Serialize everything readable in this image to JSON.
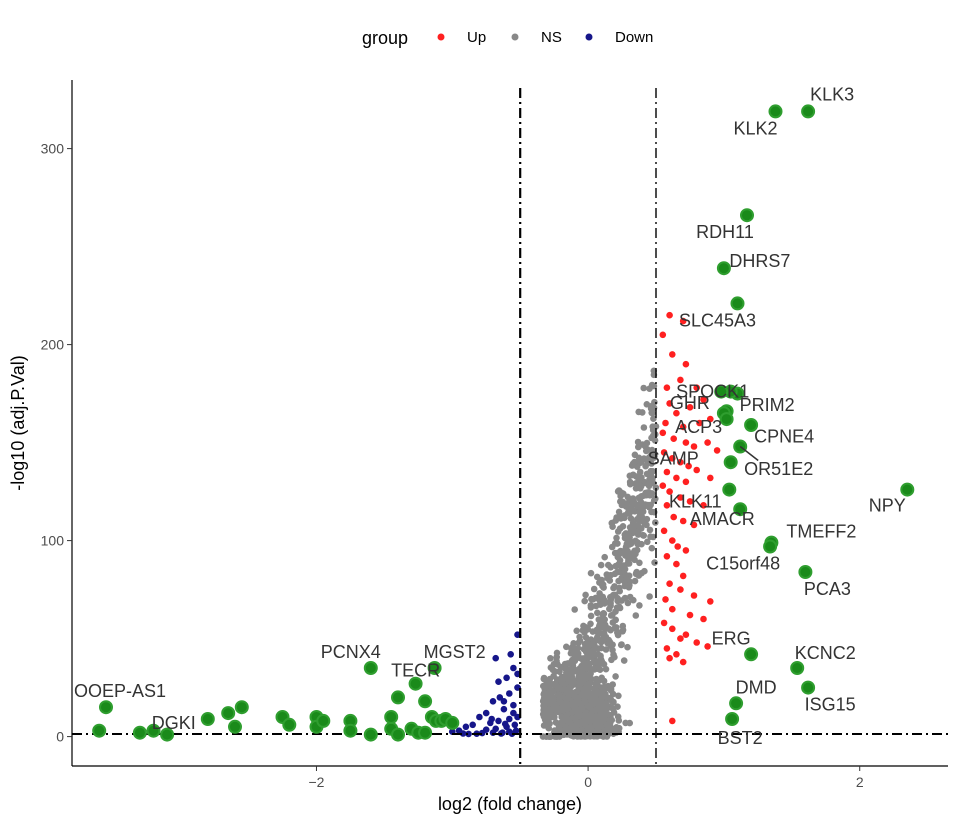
{
  "chart_data": {
    "type": "scatter",
    "xlabel": "log2 (fold change)",
    "ylabel": "-log10 (adj.P.Val)",
    "xlim": [
      -3.8,
      2.65
    ],
    "ylim": [
      -15,
      335
    ],
    "x_ticks": [
      -2,
      0,
      2
    ],
    "y_ticks": [
      0,
      100,
      200,
      300
    ],
    "x_tick_labels": [
      "−2",
      "0",
      "2"
    ],
    "y_tick_labels": [
      "0",
      "100",
      "200",
      "300"
    ],
    "grid": false,
    "thresholds": {
      "fc_left": -0.5,
      "fc_right": 0.5,
      "p_line": 1.3
    },
    "legend": {
      "title": "group",
      "position": "top",
      "entries": [
        {
          "label": "Up",
          "color": "#ff2020"
        },
        {
          "label": "NS",
          "color": "#888888"
        },
        {
          "label": "Down",
          "color": "#16168a"
        }
      ]
    },
    "highlight_color": "#1a8a1a",
    "series": [
      {
        "name": "Up",
        "points": [
          [
            0.6,
            215
          ],
          [
            0.7,
            212
          ],
          [
            0.62,
            195
          ],
          [
            0.72,
            190
          ],
          [
            0.55,
            205
          ],
          [
            0.58,
            178
          ],
          [
            0.68,
            182
          ],
          [
            0.8,
            178
          ],
          [
            0.85,
            172
          ],
          [
            0.6,
            170
          ],
          [
            0.65,
            165
          ],
          [
            0.75,
            168
          ],
          [
            0.9,
            162
          ],
          [
            0.57,
            160
          ],
          [
            0.7,
            158
          ],
          [
            0.82,
            160
          ],
          [
            0.55,
            155
          ],
          [
            0.63,
            152
          ],
          [
            0.72,
            150
          ],
          [
            0.78,
            148
          ],
          [
            0.88,
            150
          ],
          [
            0.95,
            146
          ],
          [
            0.56,
            145
          ],
          [
            0.62,
            142
          ],
          [
            0.68,
            140
          ],
          [
            0.74,
            138
          ],
          [
            0.8,
            136
          ],
          [
            0.58,
            135
          ],
          [
            0.65,
            132
          ],
          [
            0.72,
            130
          ],
          [
            0.9,
            132
          ],
          [
            0.55,
            128
          ],
          [
            0.6,
            125
          ],
          [
            0.68,
            122
          ],
          [
            0.75,
            120
          ],
          [
            0.85,
            118
          ],
          [
            0.58,
            118
          ],
          [
            0.63,
            112
          ],
          [
            0.7,
            110
          ],
          [
            0.78,
            108
          ],
          [
            0.56,
            105
          ],
          [
            0.62,
            100
          ],
          [
            0.66,
            97
          ],
          [
            0.72,
            95
          ],
          [
            0.58,
            92
          ],
          [
            0.65,
            88
          ],
          [
            0.7,
            82
          ],
          [
            0.6,
            78
          ],
          [
            0.68,
            75
          ],
          [
            0.78,
            72
          ],
          [
            0.57,
            70
          ],
          [
            0.62,
            65
          ],
          [
            0.75,
            62
          ],
          [
            0.85,
            60
          ],
          [
            0.9,
            69
          ],
          [
            0.56,
            58
          ],
          [
            0.62,
            55
          ],
          [
            0.68,
            50
          ],
          [
            0.8,
            48
          ],
          [
            0.58,
            45
          ],
          [
            0.65,
            42
          ],
          [
            0.72,
            52
          ],
          [
            0.88,
            46
          ],
          [
            0.6,
            40
          ],
          [
            0.7,
            38
          ],
          [
            0.62,
            8
          ]
        ]
      },
      {
        "name": "Down",
        "points": [
          [
            -0.52,
            52
          ],
          [
            -0.68,
            40
          ],
          [
            -0.55,
            35
          ],
          [
            -0.6,
            30
          ],
          [
            -0.52,
            25
          ],
          [
            -0.58,
            22
          ],
          [
            -0.65,
            20
          ],
          [
            -0.7,
            18
          ],
          [
            -0.55,
            16
          ],
          [
            -0.62,
            14
          ],
          [
            -0.75,
            12
          ],
          [
            -0.8,
            10
          ],
          [
            -0.52,
            10
          ],
          [
            -0.58,
            9
          ],
          [
            -0.66,
            8
          ],
          [
            -0.72,
            7
          ],
          [
            -0.85,
            6
          ],
          [
            -0.9,
            5
          ],
          [
            -0.54,
            6
          ],
          [
            -0.6,
            5
          ],
          [
            -0.68,
            4
          ],
          [
            -0.75,
            3.5
          ],
          [
            -0.95,
            3
          ],
          [
            -1.0,
            2.5
          ],
          [
            -0.53,
            3
          ],
          [
            -0.58,
            2.5
          ],
          [
            -0.63,
            2
          ],
          [
            -0.7,
            2
          ],
          [
            -0.78,
            1.8
          ],
          [
            -0.82,
            1.5
          ],
          [
            -0.56,
            1.5
          ],
          [
            -0.64,
            1.6
          ],
          [
            -0.88,
            1.4
          ],
          [
            -0.92,
            1.6
          ],
          [
            -0.55,
            12
          ],
          [
            -0.62,
            18
          ],
          [
            -0.52,
            32
          ],
          [
            -0.57,
            42
          ],
          [
            -0.66,
            28
          ],
          [
            -0.71,
            9
          ],
          [
            -0.61,
            6.5
          ]
        ]
      }
    ],
    "highlighted_genes": [
      {
        "label": "KLK3",
        "x": 1.62,
        "y": 319
      },
      {
        "label": "KLK2",
        "x": 1.38,
        "y": 319
      },
      {
        "label": "RDH11",
        "x": 1.17,
        "y": 266
      },
      {
        "label": "DHRS7",
        "x": 1.0,
        "y": 239
      },
      {
        "label": "SLC45A3",
        "x": 1.1,
        "y": 221
      },
      {
        "label": "SPOCK1",
        "x": 1.05,
        "y": 176
      },
      {
        "label": "GHR",
        "x": 1.0,
        "y": 165
      },
      {
        "label": "PRIM2",
        "x": 1.2,
        "y": 159
      },
      {
        "label": "ACP3",
        "x": 1.02,
        "y": 162
      },
      {
        "label": "CPNE4",
        "x": 1.12,
        "y": 148
      },
      {
        "label": "OR51E2",
        "x": 1.05,
        "y": 140
      },
      {
        "label": "SAMP",
        "x": 0.98,
        "y": 176
      },
      {
        "label": "KLK11",
        "x": 1.04,
        "y": 126
      },
      {
        "label": "NPY",
        "x": 2.35,
        "y": 126
      },
      {
        "label": "AMACR",
        "x": 1.12,
        "y": 116
      },
      {
        "label": "TMEFF2",
        "x": 1.35,
        "y": 99
      },
      {
        "label": "C15orf48",
        "x": 1.34,
        "y": 97
      },
      {
        "label": "PCA3",
        "x": 1.6,
        "y": 84
      },
      {
        "label": "ERG",
        "x": 1.2,
        "y": 42
      },
      {
        "label": "KCNC2",
        "x": 1.54,
        "y": 35
      },
      {
        "label": "ISG15",
        "x": 1.62,
        "y": 25
      },
      {
        "label": "DMD",
        "x": 1.09,
        "y": 17
      },
      {
        "label": "BST2",
        "x": 1.06,
        "y": 9
      },
      {
        "label": "PCNX4",
        "x": -1.6,
        "y": 35
      },
      {
        "label": "MGST2",
        "x": -1.13,
        "y": 35
      },
      {
        "label": "TECR",
        "x": -1.27,
        "y": 27
      },
      {
        "label": "OOEP-AS1",
        "x": -3.55,
        "y": 15
      },
      {
        "label": "DGKI",
        "x": -2.8,
        "y": 9
      }
    ],
    "other_highlighted_points": [
      [
        -3.6,
        3
      ],
      [
        -3.3,
        2
      ],
      [
        -3.2,
        3
      ],
      [
        -3.1,
        1
      ],
      [
        -2.65,
        12
      ],
      [
        -2.55,
        15
      ],
      [
        -2.6,
        5
      ],
      [
        -2.25,
        10
      ],
      [
        -2.2,
        6
      ],
      [
        -2.0,
        10
      ],
      [
        -2.0,
        5
      ],
      [
        -1.75,
        8
      ],
      [
        -1.75,
        3
      ],
      [
        -1.6,
        1
      ],
      [
        -1.45,
        4
      ],
      [
        -1.45,
        10
      ],
      [
        -1.4,
        20
      ],
      [
        -1.4,
        1
      ],
      [
        -1.3,
        4
      ],
      [
        -1.25,
        2
      ],
      [
        -1.2,
        2
      ],
      [
        -1.15,
        10
      ],
      [
        -1.12,
        8
      ],
      [
        -1.08,
        8
      ],
      [
        -1.05,
        9
      ],
      [
        -1.2,
        18
      ],
      [
        -1.0,
        7
      ],
      [
        1.1,
        175
      ],
      [
        1.02,
        166
      ],
      [
        -1.95,
        8
      ]
    ]
  },
  "ns_cloud": {
    "point_count": 1650,
    "color": "#888888"
  },
  "label_positions": [
    {
      "label": "KLK3",
      "dx": 24,
      "dy": -17,
      "anchor": "middle"
    },
    {
      "label": "KLK2",
      "dx": -20,
      "dy": 17,
      "anchor": "middle"
    },
    {
      "label": "RDH11",
      "dx": -22,
      "dy": 17,
      "anchor": "middle"
    },
    {
      "label": "DHRS7",
      "dx": 36,
      "dy": -7,
      "anchor": "middle"
    },
    {
      "label": "SLC45A3",
      "dx": -20,
      "dy": 17,
      "anchor": "middle"
    },
    {
      "label": "SPOCK1",
      "dx": -18,
      "dy": 0,
      "anchor": "middle"
    },
    {
      "label": "GHR",
      "dx": -34,
      "dy": -10,
      "anchor": "middle"
    },
    {
      "label": "PRIM2",
      "dx": 16,
      "dy": -20,
      "anchor": "middle"
    },
    {
      "label": "ACP3",
      "dx": -28,
      "dy": 8,
      "anchor": "middle"
    },
    {
      "label": "CPNE4",
      "dx": 44,
      "dy": -10,
      "anchor": "middle"
    },
    {
      "label": "OR51E2",
      "dx": 48,
      "dy": 7,
      "anchor": "middle"
    },
    {
      "label": "SAMP",
      "dx": -48,
      "dy": 67,
      "anchor": "middle"
    },
    {
      "label": "KLK11",
      "dx": -34,
      "dy": 12,
      "anchor": "middle"
    },
    {
      "label": "NPY",
      "dx": -20,
      "dy": 16,
      "anchor": "middle"
    },
    {
      "label": "AMACR",
      "dx": -18,
      "dy": 10,
      "anchor": "middle"
    },
    {
      "label": "TMEFF2",
      "dx": 50,
      "dy": -11,
      "anchor": "middle"
    },
    {
      "label": "C15orf48",
      "dx": -27,
      "dy": 17,
      "anchor": "middle"
    },
    {
      "label": "PCA3",
      "dx": 22,
      "dy": 17,
      "anchor": "middle"
    },
    {
      "label": "ERG",
      "dx": -20,
      "dy": -16,
      "anchor": "middle"
    },
    {
      "label": "KCNC2",
      "dx": 28,
      "dy": -15,
      "anchor": "middle"
    },
    {
      "label": "ISG15",
      "dx": 22,
      "dy": 17,
      "anchor": "middle"
    },
    {
      "label": "DMD",
      "dx": 20,
      "dy": -16,
      "anchor": "middle"
    },
    {
      "label": "BST2",
      "dx": 8,
      "dy": 19,
      "anchor": "middle"
    },
    {
      "label": "PCNX4",
      "dx": -20,
      "dy": -16,
      "anchor": "middle"
    },
    {
      "label": "MGST2",
      "dx": 20,
      "dy": -16,
      "anchor": "middle"
    },
    {
      "label": "TECR",
      "dx": 0,
      "dy": -13,
      "anchor": "middle"
    },
    {
      "label": "OOEP-AS1",
      "dx": 14,
      "dy": -16,
      "anchor": "middle"
    },
    {
      "label": "DGKI",
      "dx": -34,
      "dy": 4,
      "anchor": "middle"
    }
  ]
}
